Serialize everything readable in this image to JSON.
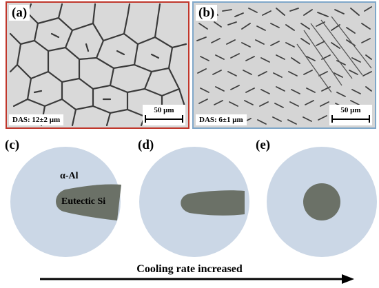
{
  "panels": [
    {
      "letter": "(a)",
      "das": "DAS: 12±2 μm",
      "scale": "50 μm",
      "frame_color": "#c0362b"
    },
    {
      "letter": "(b)",
      "das": "DAS: 6±1 μm",
      "scale": "50 μm",
      "frame_color": "#7fa7c9"
    }
  ],
  "schematic": {
    "letters": [
      "(c)",
      "(d)",
      "(e)"
    ],
    "matrix_label": "α-Al",
    "phase_label": "Eutectic Si",
    "colors": {
      "matrix": "#cbd7e6",
      "eutectic": "#6b7167"
    }
  },
  "caption": "Cooling rate increased"
}
